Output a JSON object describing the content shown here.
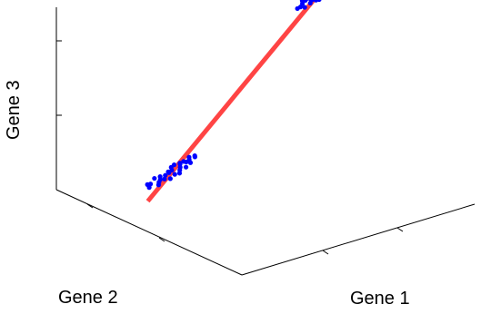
{
  "chart_data": {
    "type": "scatter",
    "projection": "3d",
    "xlabel": "Gene 1",
    "ylabel": "Gene 2",
    "zlabel": "Gene 3",
    "grid": false,
    "legend": "none",
    "series": [
      {
        "kind": "points",
        "color": "#0000ff",
        "clusters": [
          {
            "points": [
              [
                0.02,
                0.04,
                0.02
              ],
              [
                0.05,
                0.0,
                0.0
              ],
              [
                -0.03,
                0.07,
                0.01
              ],
              [
                0.08,
                0.05,
                0.03
              ],
              [
                -0.06,
                -0.02,
                0.04
              ],
              [
                0.01,
                -0.05,
                -0.02
              ],
              [
                0.1,
                0.02,
                0.01
              ],
              [
                -0.04,
                0.03,
                -0.03
              ],
              [
                0.06,
                -0.07,
                0.02
              ],
              [
                -0.08,
                0.06,
                0.0
              ],
              [
                0.03,
                0.09,
                0.04
              ],
              [
                0.12,
                -0.01,
                0.05
              ],
              [
                -0.02,
                -0.08,
                0.01
              ],
              [
                0.07,
                0.08,
                -0.02
              ],
              [
                -0.1,
                0.01,
                0.02
              ],
              [
                0.0,
                0.02,
                0.06
              ],
              [
                0.04,
                -0.03,
                -0.04
              ],
              [
                -0.05,
                0.1,
                0.03
              ],
              [
                0.09,
                -0.04,
                0.0
              ],
              [
                -0.01,
                0.05,
                -0.05
              ],
              [
                0.11,
                0.06,
                0.02
              ],
              [
                -0.07,
                -0.05,
                0.01
              ],
              [
                0.05,
                0.11,
                0.0
              ],
              [
                0.13,
                0.03,
                -0.01
              ],
              [
                -0.09,
                0.08,
                0.02
              ],
              [
                0.02,
                -0.1,
                0.03
              ],
              [
                0.08,
                0.0,
                0.06
              ],
              [
                -0.03,
                -0.01,
                -0.02
              ],
              [
                0.06,
                0.04,
                0.04
              ],
              [
                0.01,
                0.07,
                -0.03
              ]
            ]
          },
          {
            "points": [
              [
                1.0,
                1.02,
                1.01
              ],
              [
                0.96,
                0.98,
                1.03
              ],
              [
                1.04,
                0.95,
                0.99
              ],
              [
                0.98,
                1.06,
                1.02
              ],
              [
                1.07,
                1.0,
                0.97
              ],
              [
                0.93,
                1.03,
                1.0
              ],
              [
                1.02,
                0.92,
                1.04
              ],
              [
                0.95,
                0.96,
                0.96
              ],
              [
                1.09,
                1.04,
                1.02
              ],
              [
                0.99,
                1.09,
                0.98
              ],
              [
                1.05,
                0.97,
                1.05
              ],
              [
                0.91,
                0.99,
                1.02
              ],
              [
                1.03,
                1.05,
                0.95
              ],
              [
                0.97,
                0.93,
                1.01
              ],
              [
                1.08,
                0.94,
                1.0
              ],
              [
                0.94,
                1.07,
                1.03
              ],
              [
                1.01,
                1.0,
                1.06
              ],
              [
                1.06,
                1.08,
                0.99
              ],
              [
                0.92,
                0.95,
                0.97
              ],
              [
                1.0,
                0.97,
                1.04
              ],
              [
                1.04,
                1.03,
                0.96
              ],
              [
                0.96,
                1.04,
                1.05
              ],
              [
                1.1,
                0.99,
                1.01
              ],
              [
                0.98,
                0.91,
                0.99
              ],
              [
                1.02,
                1.1,
                1.02
              ],
              [
                0.9,
                1.01,
                0.98
              ],
              [
                1.05,
                1.01,
                1.07
              ],
              [
                0.97,
                1.0,
                0.94
              ],
              [
                1.03,
                0.96,
                1.02
              ],
              [
                0.95,
                1.05,
                1.0
              ]
            ]
          }
        ]
      },
      {
        "kind": "line",
        "color": "#ff4444",
        "points": [
          [
            -0.15,
            -0.15,
            -0.15
          ],
          [
            1.2,
            1.2,
            1.2
          ]
        ]
      }
    ]
  }
}
